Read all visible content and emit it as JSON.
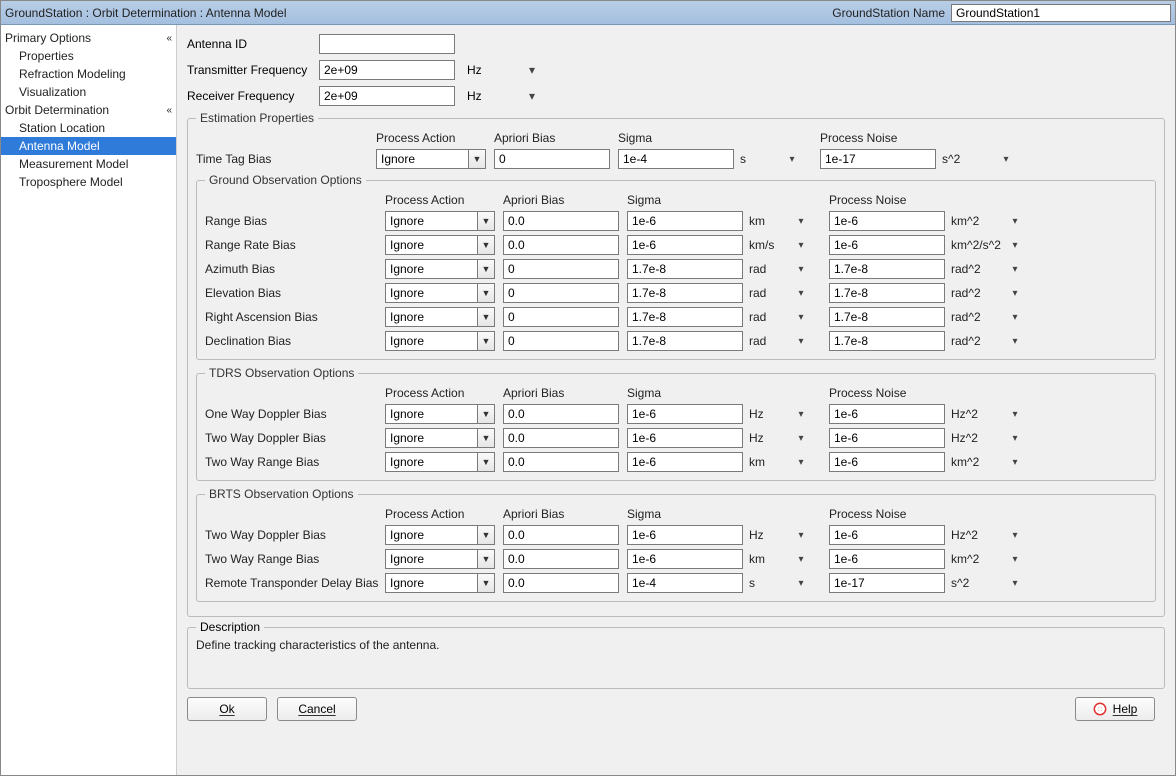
{
  "titlebar": {
    "breadcrumb": "GroundStation : Orbit Determination : Antenna Model",
    "name_label": "GroundStation Name",
    "name_value": "GroundStation1"
  },
  "sidebar": {
    "groups": [
      {
        "label": "Primary Options",
        "items": [
          "Properties",
          "Refraction Modeling",
          "Visualization"
        ]
      },
      {
        "label": "Orbit Determination",
        "items": [
          "Station Location",
          "Antenna Model",
          "Measurement Model",
          "Troposphere Model"
        ],
        "selected": "Antenna Model"
      }
    ]
  },
  "top": {
    "antenna_id_label": "Antenna ID",
    "antenna_id_value": "",
    "tx_label": "Transmitter Frequency",
    "tx_value": "2e+09",
    "tx_unit": "Hz",
    "rx_label": "Receiver Frequency",
    "rx_value": "2e+09",
    "rx_unit": "Hz"
  },
  "estimation": {
    "legend": "Estimation Properties",
    "headers": {
      "pa": "Process Action",
      "ab": "Apriori Bias",
      "sg": "Sigma",
      "pn": "Process Noise"
    },
    "timetag": {
      "label": "Time Tag Bias",
      "action": "Ignore",
      "apriori": "0",
      "sigma": "1e-4",
      "sigma_unit": "s",
      "noise": "1e-17",
      "noise_unit": "s^2"
    },
    "ground": {
      "legend": "Ground Observation Options",
      "rows": [
        {
          "label": "Range Bias",
          "action": "Ignore",
          "apriori": "0.0",
          "sigma": "1e-6",
          "sigma_unit": "km",
          "noise": "1e-6",
          "noise_unit": "km^2"
        },
        {
          "label": "Range Rate Bias",
          "action": "Ignore",
          "apriori": "0.0",
          "sigma": "1e-6",
          "sigma_unit": "km/s",
          "noise": "1e-6",
          "noise_unit": "km^2/s^2"
        },
        {
          "label": "Azimuth Bias",
          "action": "Ignore",
          "apriori": "0",
          "sigma": "1.7e-8",
          "sigma_unit": "rad",
          "noise": "1.7e-8",
          "noise_unit": "rad^2"
        },
        {
          "label": "Elevation Bias",
          "action": "Ignore",
          "apriori": "0",
          "sigma": "1.7e-8",
          "sigma_unit": "rad",
          "noise": "1.7e-8",
          "noise_unit": "rad^2"
        },
        {
          "label": "Right Ascension Bias",
          "action": "Ignore",
          "apriori": "0",
          "sigma": "1.7e-8",
          "sigma_unit": "rad",
          "noise": "1.7e-8",
          "noise_unit": "rad^2"
        },
        {
          "label": "Declination Bias",
          "action": "Ignore",
          "apriori": "0",
          "sigma": "1.7e-8",
          "sigma_unit": "rad",
          "noise": "1.7e-8",
          "noise_unit": "rad^2"
        }
      ]
    },
    "tdrs": {
      "legend": "TDRS Observation Options",
      "rows": [
        {
          "label": "One Way Doppler Bias",
          "action": "Ignore",
          "apriori": "0.0",
          "sigma": "1e-6",
          "sigma_unit": "Hz",
          "noise": "1e-6",
          "noise_unit": "Hz^2"
        },
        {
          "label": "Two Way Doppler Bias",
          "action": "Ignore",
          "apriori": "0.0",
          "sigma": "1e-6",
          "sigma_unit": "Hz",
          "noise": "1e-6",
          "noise_unit": "Hz^2"
        },
        {
          "label": "Two Way Range Bias",
          "action": "Ignore",
          "apriori": "0.0",
          "sigma": "1e-6",
          "sigma_unit": "km",
          "noise": "1e-6",
          "noise_unit": "km^2"
        }
      ]
    },
    "brts": {
      "legend": "BRTS Observation Options",
      "rows": [
        {
          "label": "Two Way Doppler Bias",
          "action": "Ignore",
          "apriori": "0.0",
          "sigma": "1e-6",
          "sigma_unit": "Hz",
          "noise": "1e-6",
          "noise_unit": "Hz^2"
        },
        {
          "label": "Two Way Range Bias",
          "action": "Ignore",
          "apriori": "0.0",
          "sigma": "1e-6",
          "sigma_unit": "km",
          "noise": "1e-6",
          "noise_unit": "km^2"
        },
        {
          "label": "Remote Transponder Delay Bias",
          "action": "Ignore",
          "apriori": "0.0",
          "sigma": "1e-4",
          "sigma_unit": "s",
          "noise": "1e-17",
          "noise_unit": "s^2"
        }
      ]
    }
  },
  "description": {
    "legend": "Description",
    "text": "Define tracking characteristics of the antenna."
  },
  "buttons": {
    "ok": "Ok",
    "cancel": "Cancel",
    "help": "Help"
  },
  "colors": {
    "titlebar_grad_top": "#b8cee6",
    "titlebar_grad_bottom": "#a4bfdf",
    "selected_bg": "#2f7bd9"
  }
}
